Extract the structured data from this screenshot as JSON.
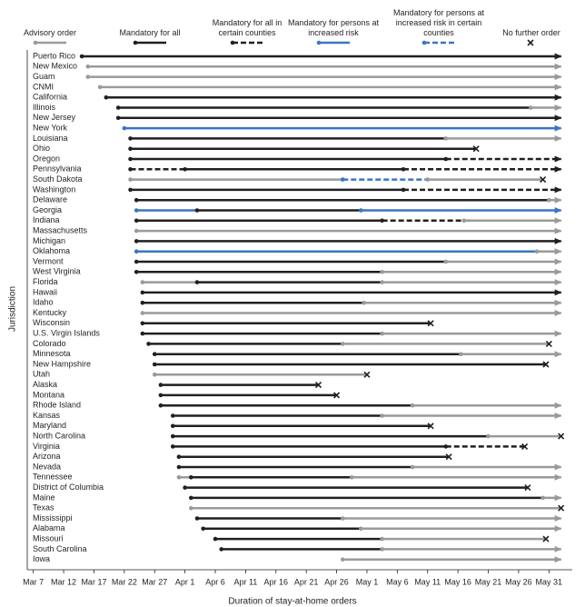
{
  "chart_data": {
    "type": "timeline",
    "x_label": "Duration of stay-at-home orders",
    "y_label": "Jurisdiction",
    "series": [
      {
        "name": "Advisory order",
        "color": "#9a9a9a",
        "dashed": false
      },
      {
        "name": "Mandatory for all",
        "color": "#231f20",
        "dashed": false
      },
      {
        "name": "Mandatory for all in certain counties",
        "color": "#231f20",
        "dashed": true
      },
      {
        "name": "Mandatory for persons at increased risk",
        "color": "#3a75c4",
        "dashed": false
      },
      {
        "name": "Mandatory for persons at increased risk in certain counties",
        "color": "#3a75c4",
        "dashed": true
      }
    ],
    "no_further_order": "No further order",
    "xlim": [
      66,
      154.5
    ],
    "xticks": [
      {
        "value": 67,
        "label": "Mar 7"
      },
      {
        "value": 72,
        "label": "Mar 12"
      },
      {
        "value": 77,
        "label": "Mar 17"
      },
      {
        "value": 82,
        "label": "Mar 22"
      },
      {
        "value": 87,
        "label": "Mar 27"
      },
      {
        "value": 92,
        "label": "Apr 1"
      },
      {
        "value": 97,
        "label": "Apr 6"
      },
      {
        "value": 102,
        "label": "Apr 11"
      },
      {
        "value": 107,
        "label": "Apr 16"
      },
      {
        "value": 112,
        "label": "Apr 21"
      },
      {
        "value": 117,
        "label": "Apr 26"
      },
      {
        "value": 122,
        "label": "May 1"
      },
      {
        "value": 127,
        "label": "May 6"
      },
      {
        "value": 132,
        "label": "May 11"
      },
      {
        "value": 137,
        "label": "May 16"
      },
      {
        "value": 142,
        "label": "May 21"
      },
      {
        "value": 147,
        "label": "May 26"
      },
      {
        "value": 152,
        "label": "May 31"
      }
    ],
    "categories": [
      "Puerto Rico",
      "New Mexico",
      "Guam",
      "CNMI",
      "California",
      "Illinois",
      "New Jersey",
      "New York",
      "Louisiana",
      "Ohio",
      "Oregon",
      "Pennsylvania",
      "South Dakota",
      "Washington",
      "Delaware",
      "Georgia",
      "Indiana",
      "Massachusetts",
      "Michigan",
      "Oklahoma",
      "Vermont",
      "West Virginia",
      "Florida",
      "Hawaii",
      "Idaho",
      "Kentucky",
      "Wisconsin",
      "U.S. Virgin Islands",
      "Colorado",
      "Minnesota",
      "New Hampshire",
      "Utah",
      "Alaska",
      "Montana",
      "Rhode Island",
      "Kansas",
      "Maryland",
      "North Carolina",
      "Virginia",
      "Arizona",
      "Nevada",
      "Tennessee",
      "District of Columbia",
      "Maine",
      "Texas",
      "Mississippi",
      "Alabama",
      "Missouri",
      "South Carolina",
      "Iowa"
    ],
    "rows": [
      {
        "end": "arrow",
        "segments": [
          {
            "kind": 1,
            "start": 75,
            "end": 154
          }
        ]
      },
      {
        "end": "arrow",
        "segments": [
          {
            "kind": 0,
            "start": 76,
            "end": 154
          }
        ]
      },
      {
        "end": "arrow",
        "segments": [
          {
            "kind": 0,
            "start": 76,
            "end": 154
          }
        ]
      },
      {
        "end": "arrow",
        "segments": [
          {
            "kind": 0,
            "start": 78,
            "end": 154
          }
        ]
      },
      {
        "end": "arrow",
        "segments": [
          {
            "kind": 1,
            "start": 79,
            "end": 154
          }
        ]
      },
      {
        "end": "arrow",
        "segments": [
          {
            "kind": 1,
            "start": 81,
            "end": 149
          },
          {
            "kind": 0,
            "start": 149,
            "end": 154
          }
        ]
      },
      {
        "end": "arrow",
        "segments": [
          {
            "kind": 1,
            "start": 81,
            "end": 154
          }
        ]
      },
      {
        "end": "arrow",
        "segments": [
          {
            "kind": 3,
            "start": 82,
            "end": 154
          }
        ]
      },
      {
        "end": "arrow",
        "segments": [
          {
            "kind": 1,
            "start": 83,
            "end": 135
          },
          {
            "kind": 0,
            "start": 135,
            "end": 154
          }
        ]
      },
      {
        "end": "x",
        "segments": [
          {
            "kind": 1,
            "start": 83,
            "end": 140
          }
        ]
      },
      {
        "end": "arrow",
        "segments": [
          {
            "kind": 1,
            "start": 83,
            "end": 135
          },
          {
            "kind": 2,
            "start": 135,
            "end": 154
          }
        ]
      },
      {
        "end": "arrow",
        "segments": [
          {
            "kind": 2,
            "start": 83,
            "end": 92
          },
          {
            "kind": 1,
            "start": 92,
            "end": 128
          },
          {
            "kind": 2,
            "start": 128,
            "end": 154
          }
        ]
      },
      {
        "end": "x",
        "segments": [
          {
            "kind": 0,
            "start": 83,
            "end": 118
          },
          {
            "kind": 4,
            "start": 118,
            "end": 132
          },
          {
            "kind": 0,
            "start": 132,
            "end": 151
          }
        ]
      },
      {
        "end": "arrow",
        "segments": [
          {
            "kind": 1,
            "start": 83,
            "end": 128
          },
          {
            "kind": 2,
            "start": 128,
            "end": 154
          }
        ]
      },
      {
        "end": "arrow",
        "segments": [
          {
            "kind": 1,
            "start": 84,
            "end": 152
          },
          {
            "kind": 0,
            "start": 152,
            "end": 154
          }
        ]
      },
      {
        "end": "arrow",
        "segments": [
          {
            "kind": 3,
            "start": 84,
            "end": 94
          },
          {
            "kind": 1,
            "start": 94,
            "end": 121
          },
          {
            "kind": 3,
            "start": 121,
            "end": 154
          }
        ]
      },
      {
        "end": "arrow",
        "segments": [
          {
            "kind": 1,
            "start": 84,
            "end": 124.5
          },
          {
            "kind": 2,
            "start": 124.5,
            "end": 138
          },
          {
            "kind": 0,
            "start": 138,
            "end": 154
          }
        ]
      },
      {
        "end": "arrow",
        "segments": [
          {
            "kind": 0,
            "start": 84,
            "end": 154
          }
        ]
      },
      {
        "end": "arrow",
        "segments": [
          {
            "kind": 1,
            "start": 84,
            "end": 154
          }
        ]
      },
      {
        "end": "arrow",
        "segments": [
          {
            "kind": 3,
            "start": 84,
            "end": 150
          },
          {
            "kind": 0,
            "start": 150,
            "end": 154
          }
        ]
      },
      {
        "end": "arrow",
        "segments": [
          {
            "kind": 1,
            "start": 84,
            "end": 135
          },
          {
            "kind": 0,
            "start": 135,
            "end": 154
          }
        ]
      },
      {
        "end": "arrow",
        "segments": [
          {
            "kind": 1,
            "start": 84,
            "end": 124.5
          },
          {
            "kind": 0,
            "start": 124.5,
            "end": 154
          }
        ]
      },
      {
        "end": "arrow",
        "segments": [
          {
            "kind": 0,
            "start": 85,
            "end": 94
          },
          {
            "kind": 1,
            "start": 94,
            "end": 124.5
          },
          {
            "kind": 0,
            "start": 124.5,
            "end": 154
          }
        ]
      },
      {
        "end": "arrow",
        "segments": [
          {
            "kind": 1,
            "start": 85,
            "end": 154
          }
        ]
      },
      {
        "end": "arrow",
        "segments": [
          {
            "kind": 1,
            "start": 85,
            "end": 121.5
          },
          {
            "kind": 0,
            "start": 121.5,
            "end": 154
          }
        ]
      },
      {
        "end": "arrow",
        "segments": [
          {
            "kind": 0,
            "start": 85,
            "end": 154
          }
        ]
      },
      {
        "end": "x",
        "segments": [
          {
            "kind": 1,
            "start": 85,
            "end": 132.5
          }
        ]
      },
      {
        "end": "arrow",
        "segments": [
          {
            "kind": 1,
            "start": 85,
            "end": 124.5
          },
          {
            "kind": 0,
            "start": 124.5,
            "end": 154
          }
        ]
      },
      {
        "end": "x",
        "segments": [
          {
            "kind": 1,
            "start": 86,
            "end": 118
          },
          {
            "kind": 0,
            "start": 118,
            "end": 152
          }
        ]
      },
      {
        "end": "arrow",
        "segments": [
          {
            "kind": 1,
            "start": 87,
            "end": 137.5
          },
          {
            "kind": 0,
            "start": 137.5,
            "end": 154
          }
        ]
      },
      {
        "end": "x",
        "segments": [
          {
            "kind": 1,
            "start": 87,
            "end": 151.5
          }
        ]
      },
      {
        "end": "x",
        "segments": [
          {
            "kind": 0,
            "start": 87,
            "end": 122
          }
        ]
      },
      {
        "end": "x",
        "segments": [
          {
            "kind": 1,
            "start": 88,
            "end": 114
          }
        ]
      },
      {
        "end": "x",
        "segments": [
          {
            "kind": 1,
            "start": 88,
            "end": 117
          }
        ]
      },
      {
        "end": "arrow",
        "segments": [
          {
            "kind": 1,
            "start": 88,
            "end": 129.5
          },
          {
            "kind": 0,
            "start": 129.5,
            "end": 154
          }
        ]
      },
      {
        "end": "arrow",
        "segments": [
          {
            "kind": 1,
            "start": 90,
            "end": 124.5
          },
          {
            "kind": 0,
            "start": 124.5,
            "end": 154
          }
        ]
      },
      {
        "end": "x",
        "segments": [
          {
            "kind": 1,
            "start": 90,
            "end": 132.5
          }
        ]
      },
      {
        "end": "x",
        "segments": [
          {
            "kind": 1,
            "start": 90,
            "end": 142
          },
          {
            "kind": 0,
            "start": 142,
            "end": 154
          }
        ]
      },
      {
        "end": "x",
        "segments": [
          {
            "kind": 1,
            "start": 90,
            "end": 135
          },
          {
            "kind": 2,
            "start": 135,
            "end": 148
          }
        ]
      },
      {
        "end": "x",
        "segments": [
          {
            "kind": 1,
            "start": 91,
            "end": 135.5
          }
        ]
      },
      {
        "end": "arrow",
        "segments": [
          {
            "kind": 1,
            "start": 91,
            "end": 129.5
          },
          {
            "kind": 0,
            "start": 129.5,
            "end": 154
          }
        ]
      },
      {
        "end": "arrow",
        "segments": [
          {
            "kind": 0,
            "start": 91,
            "end": 93
          },
          {
            "kind": 1,
            "start": 93,
            "end": 119.5
          },
          {
            "kind": 0,
            "start": 119.5,
            "end": 154
          }
        ]
      },
      {
        "end": "x",
        "segments": [
          {
            "kind": 1,
            "start": 92,
            "end": 148.5
          }
        ]
      },
      {
        "end": "arrow",
        "segments": [
          {
            "kind": 1,
            "start": 93,
            "end": 151
          },
          {
            "kind": 0,
            "start": 151,
            "end": 154
          }
        ]
      },
      {
        "end": "x",
        "segments": [
          {
            "kind": 0,
            "start": 93,
            "end": 154
          }
        ]
      },
      {
        "end": "arrow",
        "segments": [
          {
            "kind": 1,
            "start": 94,
            "end": 118
          },
          {
            "kind": 0,
            "start": 118,
            "end": 154
          }
        ]
      },
      {
        "end": "arrow",
        "segments": [
          {
            "kind": 1,
            "start": 95,
            "end": 121
          },
          {
            "kind": 0,
            "start": 121,
            "end": 154
          }
        ]
      },
      {
        "end": "x",
        "segments": [
          {
            "kind": 1,
            "start": 97,
            "end": 124.5
          },
          {
            "kind": 0,
            "start": 124.5,
            "end": 151.5
          }
        ]
      },
      {
        "end": "arrow",
        "segments": [
          {
            "kind": 1,
            "start": 98,
            "end": 124.5
          },
          {
            "kind": 0,
            "start": 124.5,
            "end": 154
          }
        ]
      },
      {
        "end": "arrow",
        "segments": [
          {
            "kind": 0,
            "start": 118,
            "end": 154
          }
        ]
      }
    ]
  }
}
